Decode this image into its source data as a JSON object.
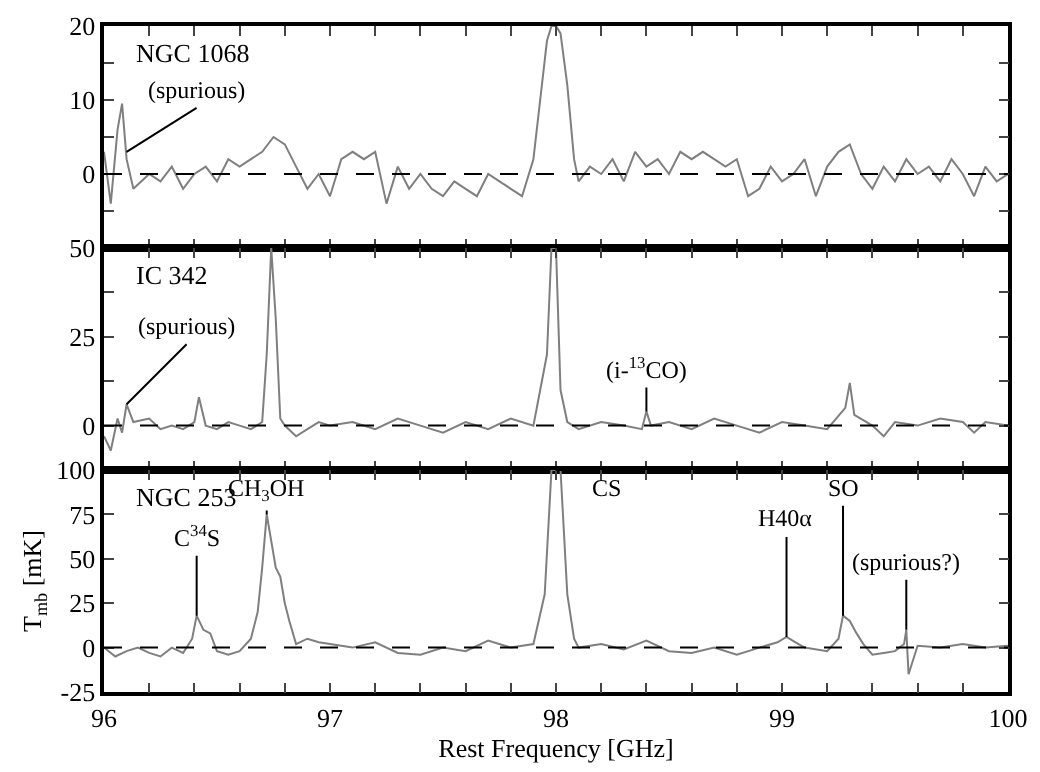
{
  "chart_data": [
    {
      "type": "line",
      "title": "NGC 1068",
      "xlim": [
        96,
        100
      ],
      "ylim": [
        -10,
        20
      ],
      "tick_labels": "y",
      "marker": "none",
      "line_style": "solid",
      "xticks": [
        96,
        {
          "value": 96.2,
          "label": null
        },
        {
          "value": 96.4,
          "label": null
        },
        {
          "value": 96.6,
          "label": null
        },
        {
          "value": 96.8,
          "label": null
        },
        97,
        {
          "value": 97.2,
          "label": null
        },
        {
          "value": 97.4,
          "label": null
        },
        {
          "value": 97.6,
          "label": null
        },
        {
          "value": 97.8,
          "label": null
        },
        98,
        {
          "value": 98.2,
          "label": null
        },
        {
          "value": 98.4,
          "label": null
        },
        {
          "value": 98.6,
          "label": null
        },
        {
          "value": 98.8,
          "label": null
        },
        99,
        {
          "value": 99.2,
          "label": null
        },
        {
          "value": 99.4,
          "label": null
        },
        {
          "value": 99.6,
          "label": null
        },
        {
          "value": 99.8,
          "label": null
        },
        100
      ],
      "yticks": [
        {
          "value": -5,
          "label": null
        },
        0,
        {
          "value": 5,
          "label": null
        },
        10,
        {
          "value": 15,
          "label": null
        },
        20
      ],
      "ref_lines": [
        {
          "axis": "y",
          "value": 0,
          "color": "#000000",
          "line_style": "dashed"
        }
      ],
      "annotations": [
        {
          "text": "(spurious)",
          "x": 96.1,
          "y": 3
        }
      ],
      "series": [
        {
          "color": "#7f7f7f",
          "x": [
            96.0,
            96.03,
            96.06,
            96.08,
            96.1,
            96.13,
            96.2,
            96.25,
            96.3,
            96.35,
            96.4,
            96.45,
            96.5,
            96.55,
            96.6,
            96.65,
            96.7,
            96.75,
            96.8,
            96.85,
            96.9,
            96.95,
            97.0,
            97.05,
            97.1,
            97.15,
            97.2,
            97.25,
            97.3,
            97.35,
            97.4,
            97.45,
            97.5,
            97.55,
            97.6,
            97.65,
            97.7,
            97.75,
            97.8,
            97.85,
            97.9,
            97.93,
            97.96,
            97.98,
            98.0,
            98.02,
            98.05,
            98.08,
            98.1,
            98.15,
            98.2,
            98.25,
            98.3,
            98.35,
            98.4,
            98.45,
            98.5,
            98.55,
            98.6,
            98.65,
            98.7,
            98.75,
            98.8,
            98.85,
            98.9,
            98.95,
            99.0,
            99.05,
            99.1,
            99.15,
            99.2,
            99.25,
            99.3,
            99.35,
            99.4,
            99.45,
            99.5,
            99.55,
            99.6,
            99.65,
            99.7,
            99.75,
            99.8,
            99.85,
            99.9,
            99.95,
            100.0
          ],
          "values": [
            3,
            -4,
            6,
            9.5,
            2,
            -2,
            0,
            -1,
            1,
            -2,
            0,
            1,
            -1,
            2,
            1,
            2,
            3,
            5,
            4,
            1,
            -2,
            0,
            -3,
            2,
            3,
            2,
            3,
            -4,
            1,
            -2,
            0,
            -2,
            -3,
            -1,
            -2,
            -3,
            0,
            -1,
            -2,
            -3,
            2,
            10,
            18,
            20,
            20,
            19,
            12,
            2,
            -1,
            1,
            0,
            2,
            -1,
            3,
            1,
            2,
            0,
            3,
            2,
            3,
            2,
            1,
            2,
            -3,
            -2,
            1,
            -1,
            0,
            2,
            -3,
            1,
            3,
            4,
            0,
            -2,
            1,
            -1,
            2,
            0,
            1,
            -1,
            2,
            0,
            -3,
            1,
            -1,
            0
          ]
        }
      ]
    },
    {
      "type": "line",
      "title": "IC 342",
      "xlim": [
        96,
        100
      ],
      "ylim": [
        -12.5,
        50
      ],
      "tick_labels": "y",
      "marker": "none",
      "line_style": "solid",
      "xticks": [
        96,
        {
          "value": 96.2,
          "label": null
        },
        {
          "value": 96.4,
          "label": null
        },
        {
          "value": 96.6,
          "label": null
        },
        {
          "value": 96.8,
          "label": null
        },
        97,
        {
          "value": 97.2,
          "label": null
        },
        {
          "value": 97.4,
          "label": null
        },
        {
          "value": 97.6,
          "label": null
        },
        {
          "value": 97.8,
          "label": null
        },
        98,
        {
          "value": 98.2,
          "label": null
        },
        {
          "value": 98.4,
          "label": null
        },
        {
          "value": 98.6,
          "label": null
        },
        {
          "value": 98.8,
          "label": null
        },
        99,
        {
          "value": 99.2,
          "label": null
        },
        {
          "value": 99.4,
          "label": null
        },
        {
          "value": 99.6,
          "label": null
        },
        {
          "value": 99.8,
          "label": null
        },
        100
      ],
      "yticks": [
        0,
        {
          "value": 12.5,
          "label": null
        },
        25,
        {
          "value": 37.5,
          "label": null
        },
        50
      ],
      "ref_lines": [
        {
          "axis": "y",
          "value": 0,
          "color": "#000000",
          "line_style": "dashed"
        }
      ],
      "annotations": [
        {
          "text": "(spurious)",
          "x": 96.1,
          "y": 6
        },
        {
          "text": "(i-$^{13}$CO)",
          "x": 98.4,
          "y": 4
        }
      ],
      "series": [
        {
          "color": "#7f7f7f",
          "x": [
            96.0,
            96.03,
            96.06,
            96.08,
            96.1,
            96.13,
            96.2,
            96.25,
            96.3,
            96.35,
            96.4,
            96.42,
            96.45,
            96.5,
            96.55,
            96.6,
            96.65,
            96.7,
            96.72,
            96.74,
            96.76,
            96.78,
            96.8,
            96.85,
            96.9,
            96.95,
            97.0,
            97.1,
            97.2,
            97.3,
            97.4,
            97.5,
            97.6,
            97.7,
            97.8,
            97.9,
            97.96,
            97.98,
            98.0,
            98.02,
            98.05,
            98.1,
            98.2,
            98.3,
            98.38,
            98.4,
            98.42,
            98.5,
            98.6,
            98.7,
            98.8,
            98.9,
            99.0,
            99.1,
            99.2,
            99.28,
            99.3,
            99.32,
            99.4,
            99.45,
            99.5,
            99.6,
            99.7,
            99.8,
            99.85,
            99.9,
            100.0
          ],
          "values": [
            -3,
            -7,
            2,
            -2,
            6,
            1,
            2,
            -1,
            0,
            -1,
            1,
            8,
            0,
            -1,
            1,
            0,
            -1,
            1,
            20,
            50,
            30,
            2,
            0,
            -3,
            -1,
            1,
            0,
            1,
            -1,
            2,
            0,
            -2,
            1,
            -1,
            2,
            0,
            20,
            50,
            50,
            10,
            1,
            -1,
            1,
            0,
            -1,
            4,
            0,
            1,
            -1,
            2,
            0,
            -2,
            1,
            0,
            -1,
            5,
            12,
            3,
            0,
            -3,
            1,
            0,
            2,
            1,
            -2,
            1,
            0
          ]
        }
      ]
    },
    {
      "type": "line",
      "title": "NGC 253",
      "xlabel": "Rest Frequency [GHz]",
      "ylabel": "T$_{mb}$ [mK]",
      "xlim": [
        96,
        100
      ],
      "ylim": [
        -25,
        100
      ],
      "marker": "none",
      "line_style": "solid",
      "xticks": [
        96,
        {
          "value": 96.2,
          "label": null
        },
        {
          "value": 96.4,
          "label": null
        },
        {
          "value": 96.6,
          "label": null
        },
        {
          "value": 96.8,
          "label": null
        },
        97,
        {
          "value": 97.2,
          "label": null
        },
        {
          "value": 97.4,
          "label": null
        },
        {
          "value": 97.6,
          "label": null
        },
        {
          "value": 97.8,
          "label": null
        },
        98,
        {
          "value": 98.2,
          "label": null
        },
        {
          "value": 98.4,
          "label": null
        },
        {
          "value": 98.6,
          "label": null
        },
        {
          "value": 98.8,
          "label": null
        },
        99,
        {
          "value": 99.2,
          "label": null
        },
        {
          "value": 99.4,
          "label": null
        },
        {
          "value": 99.6,
          "label": null
        },
        {
          "value": 99.8,
          "label": null
        },
        100
      ],
      "yticks": [
        -25,
        0,
        25,
        50,
        75,
        100
      ],
      "ref_lines": [
        {
          "axis": "y",
          "value": 0,
          "color": "#000000",
          "line_style": "dashed"
        }
      ],
      "annotations": [
        {
          "text": "C$^{34}$S",
          "x": 96.41,
          "y": 18
        },
        {
          "text": "CH$_{3}$OH",
          "x": 96.72,
          "y": 75
        },
        {
          "text": "CS",
          "x": 98.0,
          "y": 100
        },
        {
          "text": "H40α",
          "x": 99.02,
          "y": 6
        },
        {
          "text": "SO",
          "x": 99.27,
          "y": 18
        },
        {
          "text": "(spurious?)",
          "x": 99.55,
          "y": 10
        }
      ],
      "series": [
        {
          "color": "#7f7f7f",
          "x": [
            96.0,
            96.05,
            96.1,
            96.15,
            96.2,
            96.25,
            96.3,
            96.35,
            96.39,
            96.41,
            96.44,
            96.47,
            96.5,
            96.55,
            96.6,
            96.65,
            96.68,
            96.7,
            96.72,
            96.74,
            96.76,
            96.78,
            96.8,
            96.82,
            96.85,
            96.9,
            96.95,
            97.0,
            97.1,
            97.2,
            97.3,
            97.4,
            97.5,
            97.6,
            97.7,
            97.8,
            97.9,
            97.95,
            97.98,
            98.02,
            98.05,
            98.08,
            98.1,
            98.2,
            98.3,
            98.4,
            98.5,
            98.6,
            98.7,
            98.8,
            98.9,
            98.98,
            99.02,
            99.06,
            99.1,
            99.2,
            99.25,
            99.27,
            99.3,
            99.33,
            99.36,
            99.4,
            99.45,
            99.5,
            99.54,
            99.55,
            99.56,
            99.6,
            99.7,
            99.8,
            99.9,
            100.0
          ],
          "values": [
            0,
            -5,
            -2,
            0,
            -3,
            -5,
            0,
            -3,
            5,
            18,
            10,
            8,
            -2,
            -4,
            -2,
            5,
            20,
            45,
            75,
            60,
            45,
            40,
            25,
            15,
            2,
            5,
            3,
            2,
            0,
            3,
            -3,
            -4,
            0,
            -2,
            4,
            0,
            2,
            30,
            100,
            100,
            30,
            5,
            0,
            2,
            -1,
            4,
            -2,
            -3,
            0,
            -4,
            0,
            3,
            6,
            3,
            0,
            -2,
            5,
            18,
            15,
            8,
            2,
            -4,
            -3,
            -2,
            2,
            10,
            -15,
            1,
            0,
            2,
            0,
            1
          ]
        }
      ]
    }
  ]
}
